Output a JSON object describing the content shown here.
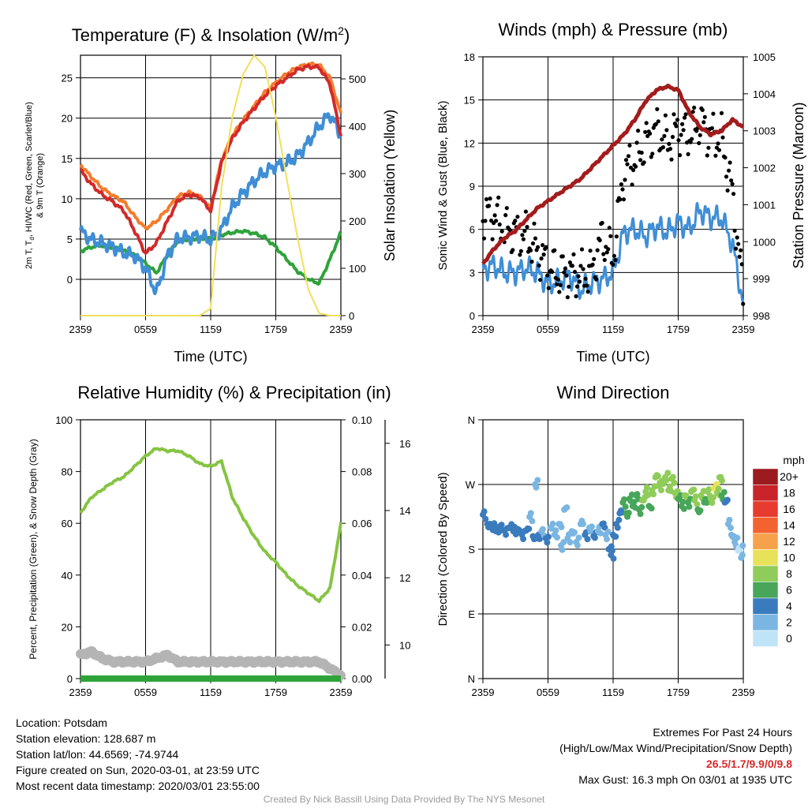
{
  "palette": {
    "temp": "#d22a2a",
    "wind_chill": "#2ea33a",
    "dewpoint": "#3f8ed6",
    "t9m": "#f47c2c",
    "insolation": "#f2df5a",
    "pressure": "#a31c1c",
    "sonic_wind": "#3f8ed6",
    "gust": "#000000",
    "rh": "#86c442",
    "precip": "#2ea33a",
    "snow": "#b4b4b4"
  },
  "time_ticks": [
    "2359",
    "0559",
    "1159",
    "1759",
    "2359"
  ],
  "panels": {
    "temp": {
      "title": "Temperature (F) & Insolation (W/m",
      "title_sup": "2",
      "title_end": ")",
      "xlabel": "Time (UTC)",
      "ylabel_line1": "2m T, T",
      "ylabel_sub": "d",
      "ylabel_line1_end": ", HI/WC (Red, Green, Scarlet/Blue)",
      "ylabel_line2": "& 9m T (Orange)",
      "ylabel_right": "Solar Insolation (Yellow)",
      "yticks": [
        "0",
        "5",
        "10",
        "15",
        "20",
        "25"
      ],
      "yticks_right": [
        "0",
        "100",
        "200",
        "300",
        "400",
        "500"
      ]
    },
    "wind": {
      "title": "Winds (mph) & Pressure (mb)",
      "xlabel": "Time (UTC)",
      "ylabel": "Sonic Wind & Gust (Blue, Black)",
      "ylabel_right": "Station Pressure (Maroon)",
      "yticks": [
        "0",
        "3",
        "6",
        "9",
        "12",
        "15",
        "18"
      ],
      "yticks_right": [
        "998",
        "999",
        "1000",
        "1001",
        "1002",
        "1003",
        "1004",
        "1005"
      ]
    },
    "rh": {
      "title": "Relative Humidity (%) & Precipitation (in)",
      "ylabel": "Percent, Precipitation (Green), & Snow Depth (Gray)",
      "yticks": [
        "0",
        "20",
        "40",
        "60",
        "80",
        "100"
      ],
      "yticks_precip": [
        "0.00",
        "0.02",
        "0.04",
        "0.06",
        "0.08",
        "0.10"
      ],
      "yticks_snow": [
        "10",
        "12",
        "14",
        "16"
      ]
    },
    "dir": {
      "title": "Wind Direction",
      "ylabel": "Direction (Colored By Speed)",
      "yticks": [
        "N",
        "E",
        "S",
        "W",
        "N"
      ],
      "legend_title": "mph",
      "legend_labels": [
        "20+",
        "18",
        "16",
        "14",
        "12",
        "10",
        "8",
        "6",
        "4",
        "2",
        "0"
      ],
      "legend_colors": [
        "#9b1b1e",
        "#c8242a",
        "#e63b2e",
        "#f2632f",
        "#f6a24a",
        "#e8e15a",
        "#8fcc5a",
        "#47a65a",
        "#3a7bbd",
        "#7bb6e2",
        "#bfe4f7"
      ]
    }
  },
  "chart_data": [
    {
      "type": "line",
      "title": "Temperature (F) & Insolation (W/m2)",
      "xlabel": "Time (UTC)",
      "ylabel": "2m T, Td, HI/WC (Red, Green, Scarlet/Blue) & 9m T (Orange)",
      "ylabel_right": "Solar Insolation (Yellow)",
      "x_hours": [
        0,
        1,
        2,
        3,
        4,
        5,
        6,
        7,
        8,
        9,
        10,
        11,
        12,
        13,
        14,
        15,
        16,
        17,
        18,
        19,
        20,
        21,
        22,
        23,
        24
      ],
      "ylim": [
        -4.5,
        27.8
      ],
      "ylim_right": [
        0,
        550
      ],
      "series": [
        {
          "name": "2m T (Red)",
          "values": [
            13.5,
            11.8,
            10.5,
            9.6,
            8.5,
            6.0,
            3.2,
            4.5,
            7.2,
            9.8,
            10.5,
            10.2,
            8.5,
            14.5,
            17.5,
            19.5,
            21.2,
            22.8,
            24.0,
            25.0,
            26.0,
            26.4,
            26.3,
            24.2,
            17.8
          ]
        },
        {
          "name": "9m T (Orange)",
          "values": [
            14.2,
            12.7,
            11.3,
            10.4,
            9.6,
            7.8,
            6.3,
            7.2,
            8.7,
            10.3,
            10.8,
            10.3,
            8.8,
            14.8,
            17.8,
            19.8,
            21.5,
            23.2,
            24.4,
            25.5,
            26.3,
            26.7,
            26.6,
            25.0,
            20.5
          ]
        },
        {
          "name": "WC (Blue)",
          "values": [
            6.0,
            4.9,
            4.5,
            4.0,
            3.3,
            2.9,
            1.4,
            -1.7,
            2.9,
            5.1,
            5.2,
            5.4,
            4.9,
            6.2,
            9.0,
            10.7,
            12.2,
            13.3,
            14.1,
            14.4,
            15.3,
            17.0,
            19.0,
            20.5,
            17.8
          ]
        },
        {
          "name": "Td (Green)",
          "values": [
            3.5,
            4.0,
            4.2,
            4.0,
            3.5,
            3.0,
            2.0,
            0.8,
            3.0,
            4.8,
            5.0,
            5.1,
            5.0,
            5.5,
            5.8,
            6.0,
            5.7,
            5.2,
            4.0,
            2.5,
            1.0,
            0.0,
            -0.5,
            2.5,
            5.8
          ]
        },
        {
          "name": "Solar Insolation (Yellow)",
          "axis": "right",
          "values": [
            0,
            0,
            0,
            0,
            0,
            0,
            0,
            0,
            0,
            0,
            0,
            0,
            15,
            270,
            420,
            510,
            550,
            525,
            420,
            290,
            165,
            55,
            5,
            0,
            0
          ]
        }
      ]
    },
    {
      "type": "line",
      "title": "Winds (mph) & Pressure (mb)",
      "xlabel": "Time (UTC)",
      "ylabel": "Sonic Wind & Gust (Blue, Black)",
      "ylabel_right": "Station Pressure (Maroon)",
      "x_hours": [
        0,
        1,
        2,
        3,
        4,
        5,
        6,
        7,
        8,
        9,
        10,
        11,
        12,
        13,
        14,
        15,
        16,
        17,
        18,
        19,
        20,
        21,
        22,
        23,
        24
      ],
      "ylim": [
        0,
        18
      ],
      "ylim_right": [
        998,
        1005
      ],
      "series": [
        {
          "name": "Sonic Wind (Blue)",
          "values": [
            3.2,
            3.5,
            3.0,
            3.0,
            3.3,
            3.0,
            2.2,
            2.4,
            2.8,
            1.8,
            2.3,
            2.5,
            3.0,
            5.8,
            6.0,
            5.5,
            6.2,
            5.8,
            6.5,
            6.0,
            7.3,
            6.8,
            6.8,
            5.0,
            0.8
          ]
        },
        {
          "name": "Gust (Black)",
          "values": [
            7.1,
            7.0,
            6.0,
            5.8,
            5.5,
            4.5,
            3.5,
            2.8,
            3.0,
            2.8,
            3.0,
            5.5,
            4.0,
            10.0,
            10.8,
            12.0,
            13.0,
            12.0,
            13.0,
            12.5,
            13.5,
            12.5,
            12.3,
            8.5,
            1.5
          ]
        },
        {
          "name": "Station Pressure (Maroon)",
          "axis": "right",
          "values": [
            999.4,
            999.8,
            1000.1,
            1000.3,
            1000.6,
            1000.9,
            1001.1,
            1001.3,
            1001.5,
            1001.7,
            1002.0,
            1002.3,
            1002.6,
            1002.9,
            1003.3,
            1003.8,
            1004.1,
            1004.2,
            1004.1,
            1003.5,
            1003.1,
            1002.9,
            1003.0,
            1003.3,
            1003.1
          ]
        }
      ]
    },
    {
      "type": "line",
      "title": "Relative Humidity (%) & Precipitation (in)",
      "ylabel": "Percent, Precipitation (Green), & Snow Depth (Gray)",
      "x_hours": [
        0,
        1,
        2,
        3,
        4,
        5,
        6,
        7,
        8,
        9,
        10,
        11,
        12,
        13,
        14,
        15,
        16,
        17,
        18,
        19,
        20,
        21,
        22,
        23,
        24
      ],
      "ylim": [
        0,
        100
      ],
      "ylim_precip": [
        0,
        0.1
      ],
      "ylim_snow": [
        9,
        16.7
      ],
      "series": [
        {
          "name": "RH (Green)",
          "values": [
            64,
            70,
            73,
            76,
            78,
            82,
            86,
            89,
            88,
            88,
            86,
            83,
            82,
            84,
            70,
            62,
            55,
            49,
            45,
            40,
            36,
            33,
            30,
            35,
            60
          ]
        },
        {
          "name": "Precipitation",
          "axis": "precip",
          "values": [
            0,
            0,
            0,
            0,
            0,
            0,
            0,
            0,
            0,
            0,
            0,
            0,
            0,
            0,
            0,
            0,
            0,
            0,
            0,
            0,
            0,
            0,
            0,
            0,
            0
          ]
        },
        {
          "name": "Snow Depth (Gray)",
          "axis": "snow",
          "values": [
            9.7,
            9.8,
            9.6,
            9.5,
            9.5,
            9.5,
            9.5,
            9.6,
            9.7,
            9.5,
            9.5,
            9.5,
            9.5,
            9.5,
            9.5,
            9.5,
            9.5,
            9.5,
            9.5,
            9.5,
            9.5,
            9.5,
            9.5,
            9.3,
            9.1
          ]
        }
      ]
    },
    {
      "type": "scatter",
      "title": "Wind Direction",
      "ylabel": "Direction (Colored By Speed)",
      "y_ticks": [
        "N",
        "E",
        "S",
        "W",
        "N"
      ],
      "ylim": [
        0,
        360
      ],
      "color_scale_mph": [
        0,
        2,
        4,
        6,
        8,
        10,
        12,
        14,
        16,
        18,
        20
      ],
      "points": [
        {
          "x": 0.0,
          "dir": 228,
          "mph": 4
        },
        {
          "x": 0.4,
          "dir": 215,
          "mph": 4
        },
        {
          "x": 0.8,
          "dir": 210,
          "mph": 4
        },
        {
          "x": 1.2,
          "dir": 205,
          "mph": 3
        },
        {
          "x": 1.6,
          "dir": 212,
          "mph": 4
        },
        {
          "x": 2.0,
          "dir": 206,
          "mph": 4
        },
        {
          "x": 2.4,
          "dir": 210,
          "mph": 3
        },
        {
          "x": 2.8,
          "dir": 205,
          "mph": 4
        },
        {
          "x": 3.2,
          "dir": 208,
          "mph": 3
        },
        {
          "x": 3.6,
          "dir": 200,
          "mph": 3
        },
        {
          "x": 4.0,
          "dir": 206,
          "mph": 3
        },
        {
          "x": 4.3,
          "dir": 225,
          "mph": 2
        },
        {
          "x": 4.6,
          "dir": 198,
          "mph": 3
        },
        {
          "x": 4.8,
          "dir": 270,
          "mph": 1
        },
        {
          "x": 5.0,
          "dir": 195,
          "mph": 3
        },
        {
          "x": 5.4,
          "dir": 205,
          "mph": 2
        },
        {
          "x": 5.8,
          "dir": 195,
          "mph": 3
        },
        {
          "x": 6.2,
          "dir": 210,
          "mph": 2
        },
        {
          "x": 6.6,
          "dir": 200,
          "mph": 2
        },
        {
          "x": 7.0,
          "dir": 215,
          "mph": 1
        },
        {
          "x": 7.2,
          "dir": 185,
          "mph": 2
        },
        {
          "x": 7.5,
          "dir": 235,
          "mph": 1
        },
        {
          "x": 7.8,
          "dir": 195,
          "mph": 2
        },
        {
          "x": 8.2,
          "dir": 205,
          "mph": 2
        },
        {
          "x": 8.6,
          "dir": 190,
          "mph": 1
        },
        {
          "x": 9.0,
          "dir": 215,
          "mph": 2
        },
        {
          "x": 9.4,
          "dir": 200,
          "mph": 3
        },
        {
          "x": 9.8,
          "dir": 210,
          "mph": 2
        },
        {
          "x": 10.2,
          "dir": 198,
          "mph": 3
        },
        {
          "x": 10.6,
          "dir": 205,
          "mph": 2
        },
        {
          "x": 11.0,
          "dir": 215,
          "mph": 3
        },
        {
          "x": 11.3,
          "dir": 200,
          "mph": 2
        },
        {
          "x": 11.6,
          "dir": 180,
          "mph": 3
        },
        {
          "x": 11.8,
          "dir": 172,
          "mph": 3
        },
        {
          "x": 12.0,
          "dir": 200,
          "mph": 4
        },
        {
          "x": 12.3,
          "dir": 215,
          "mph": 4
        },
        {
          "x": 12.6,
          "dir": 230,
          "mph": 4
        },
        {
          "x": 12.9,
          "dir": 245,
          "mph": 5
        },
        {
          "x": 13.2,
          "dir": 230,
          "mph": 6
        },
        {
          "x": 13.5,
          "dir": 250,
          "mph": 6
        },
        {
          "x": 13.8,
          "dir": 240,
          "mph": 5
        },
        {
          "x": 14.1,
          "dir": 255,
          "mph": 6
        },
        {
          "x": 14.4,
          "dir": 235,
          "mph": 5
        },
        {
          "x": 14.7,
          "dir": 248,
          "mph": 7
        },
        {
          "x": 15.0,
          "dir": 260,
          "mph": 7
        },
        {
          "x": 15.3,
          "dir": 240,
          "mph": 6
        },
        {
          "x": 15.6,
          "dir": 262,
          "mph": 7
        },
        {
          "x": 15.9,
          "dir": 280,
          "mph": 7
        },
        {
          "x": 16.2,
          "dir": 268,
          "mph": 8
        },
        {
          "x": 16.5,
          "dir": 275,
          "mph": 8
        },
        {
          "x": 16.8,
          "dir": 280,
          "mph": 7
        },
        {
          "x": 17.1,
          "dir": 262,
          "mph": 7
        },
        {
          "x": 17.4,
          "dir": 278,
          "mph": 8
        },
        {
          "x": 17.7,
          "dir": 258,
          "mph": 7
        },
        {
          "x": 18.0,
          "dir": 250,
          "mph": 6
        },
        {
          "x": 18.3,
          "dir": 240,
          "mph": 6
        },
        {
          "x": 18.6,
          "dir": 255,
          "mph": 7
        },
        {
          "x": 18.9,
          "dir": 245,
          "mph": 6
        },
        {
          "x": 19.2,
          "dir": 260,
          "mph": 7
        },
        {
          "x": 19.5,
          "dir": 248,
          "mph": 7
        },
        {
          "x": 19.8,
          "dir": 235,
          "mph": 6
        },
        {
          "x": 20.1,
          "dir": 255,
          "mph": 7
        },
        {
          "x": 20.4,
          "dir": 245,
          "mph": 6
        },
        {
          "x": 20.7,
          "dir": 260,
          "mph": 7
        },
        {
          "x": 21.0,
          "dir": 250,
          "mph": 8
        },
        {
          "x": 21.3,
          "dir": 265,
          "mph": 9
        },
        {
          "x": 21.6,
          "dir": 258,
          "mph": 7
        },
        {
          "x": 21.8,
          "dir": 280,
          "mph": 8
        },
        {
          "x": 22.0,
          "dir": 255,
          "mph": 6
        },
        {
          "x": 22.3,
          "dir": 245,
          "mph": 3
        },
        {
          "x": 22.6,
          "dir": 215,
          "mph": 1
        },
        {
          "x": 22.9,
          "dir": 200,
          "mph": 1
        },
        {
          "x": 23.2,
          "dir": 190,
          "mph": 1
        },
        {
          "x": 23.5,
          "dir": 178,
          "mph": 0
        },
        {
          "x": 23.8,
          "dir": 168,
          "mph": 1
        },
        {
          "x": 23.95,
          "dir": 185,
          "mph": 1
        }
      ]
    }
  ],
  "info": {
    "location": "Location: Potsdam",
    "elevation": "Station elevation: 128.687 m",
    "latlon": "Station lat/lon: 44.6569; -74.9744",
    "created": "Figure created on Sun, 2020-03-01, at 23:59 UTC",
    "recent": "Most recent data timestamp: 2020/03/01 23:55:00"
  },
  "extremes": {
    "title": "Extremes For Past 24 Hours",
    "subtitle": "(High/Low/Max Wind/Precipitation/Snow Depth)",
    "values": "26.5/1.7/9.9/0/9.8",
    "gust": "Max Gust: 16.3 mph On 03/01 at 1935 UTC"
  },
  "footer": "Created By Nick Bassill Using Data Provided By The NYS Mesonet"
}
